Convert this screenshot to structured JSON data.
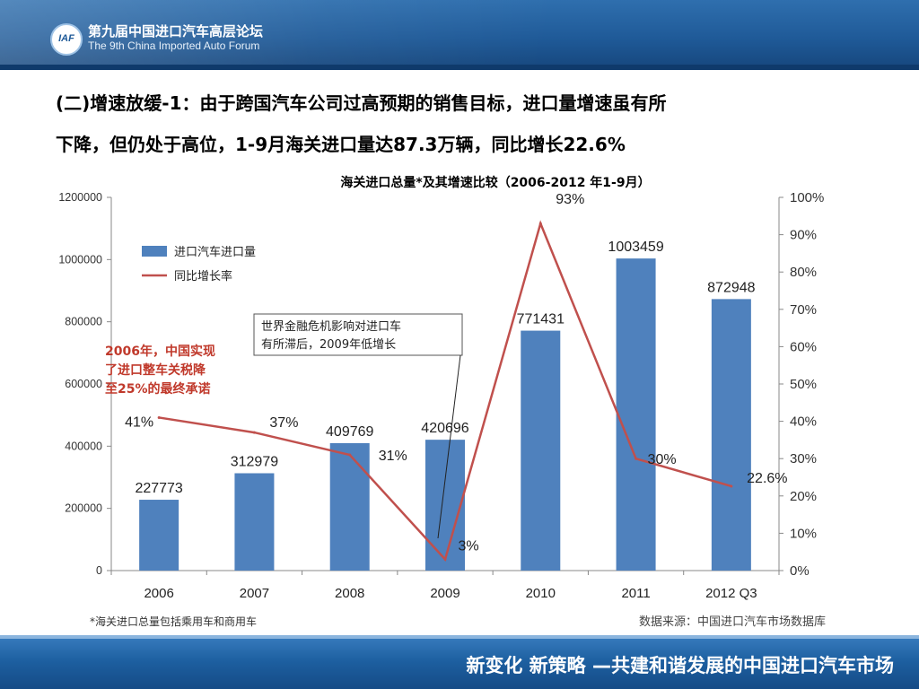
{
  "header": {
    "logo_text": "IAF",
    "forum_cn": "第九届中国进口汽车高层论坛",
    "forum_en": "The 9th China Imported Auto Forum"
  },
  "headline": {
    "line1": "(二)增速放缓-1：由于跨国汽车公司过高预期的销售目标，进口量增速虽有所",
    "line2": "下降，但仍处于高位，1-9月海关进口量达87.3万辆，同比增长22.6%"
  },
  "annotations": {
    "policy_note": [
      "2006年，中国实现",
      "了进口整车关税降",
      "至25%的最终承诺"
    ],
    "callout": [
      "世界金融危机影响对进口车",
      "有所滞后，2009年低增长"
    ],
    "footnote": "*海关进口总量包括乘用车和商用车",
    "source": "数据来源：中国进口汽车市场数据库"
  },
  "footer": {
    "slogan": "新变化  新策略 —共建和谐发展的中国进口汽车市场"
  },
  "colors": {
    "bar": "#4f81bd",
    "line": "#c0504d",
    "accent_red": "#c0392b"
  },
  "chart_data": {
    "type": "bar",
    "title": "海关进口总量*及其增速比较（2006-2012 年1-9月）",
    "categories": [
      "2006",
      "2007",
      "2008",
      "2009",
      "2010",
      "2011",
      "2012 Q3"
    ],
    "series": [
      {
        "name": "进口汽车进口量",
        "type": "bar",
        "axis": "left",
        "values": [
          227773,
          312979,
          409769,
          420696,
          771431,
          1003459,
          872948
        ],
        "labels": [
          "227773",
          "312979",
          "409769",
          "420696",
          "771431",
          "1003459",
          "872948"
        ]
      },
      {
        "name": "同比增长率",
        "type": "line",
        "axis": "right",
        "values": [
          41,
          37,
          31,
          3,
          93,
          30,
          22.6
        ],
        "labels": [
          "41%",
          "37%",
          "31%",
          "3%",
          "93%",
          "30%",
          "22.6%"
        ]
      }
    ],
    "y_left": {
      "min": 0,
      "max": 1200000,
      "ticks": [
        "0",
        "200000",
        "400000",
        "600000",
        "800000",
        "1000000",
        "1200000"
      ]
    },
    "y_right": {
      "min": 0,
      "max": 100,
      "ticks": [
        "0%",
        "10%",
        "20%",
        "30%",
        "40%",
        "50%",
        "60%",
        "70%",
        "80%",
        "90%",
        "100%"
      ]
    },
    "grid": false,
    "legend_position": "top-left"
  }
}
